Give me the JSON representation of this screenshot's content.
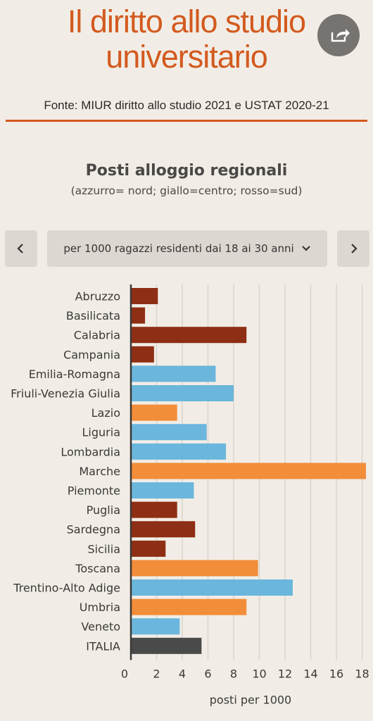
{
  "header": {
    "title_line1": "Il diritto allo studio",
    "title_line2": "universitario",
    "source": "Fonte: MIUR diritto allo studio 2021 e USTAT 2020-21",
    "share_icon": "share-icon"
  },
  "chart_header": {
    "title": "Posti alloggio regionali",
    "subtitle": "(azzurro= nord; giallo=centro; rosso=sud)"
  },
  "controls": {
    "prev_icon": "chevron-left-icon",
    "next_icon": "chevron-right-icon",
    "dropdown_label": "per 1000 ragazzi residenti dai 18 ai 30 anni",
    "dropdown_icon": "chevron-down-icon"
  },
  "colors": {
    "nord": "#6bb6dc",
    "centro": "#f28d3a",
    "sud": "#8e2e14",
    "italia": "#4a4a4a",
    "accent": "#d35a1f"
  },
  "chart_data": {
    "type": "bar",
    "orientation": "horizontal",
    "xlabel": "posti per 1000",
    "xlim": [
      0,
      18.6
    ],
    "xticks": [
      0,
      2,
      4,
      6,
      8,
      10,
      12,
      14,
      16,
      18
    ],
    "grid": true,
    "categories": [
      "Abruzzo",
      "Basilicata",
      "Calabria",
      "Campania",
      "Emilia-Romagna",
      "Friuli-Venezia Giulia",
      "Lazio",
      "Liguria",
      "Lombardia",
      "Marche",
      "Piemonte",
      "Puglia",
      "Sardegna",
      "Sicilia",
      "Toscana",
      "Trentino-Alto Adige",
      "Umbria",
      "Veneto",
      "ITALIA"
    ],
    "values": [
      2.1,
      1.1,
      9.0,
      1.8,
      6.6,
      8.0,
      3.6,
      5.9,
      7.4,
      18.3,
      4.9,
      3.6,
      5.0,
      2.7,
      9.9,
      12.6,
      9.0,
      3.8,
      5.5
    ],
    "groups": [
      "sud",
      "sud",
      "sud",
      "sud",
      "nord",
      "nord",
      "centro",
      "nord",
      "nord",
      "centro",
      "nord",
      "sud",
      "sud",
      "sud",
      "centro",
      "nord",
      "centro",
      "nord",
      "italia"
    ]
  }
}
